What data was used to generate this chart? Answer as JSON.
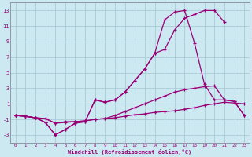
{
  "xlabel": "Windchill (Refroidissement éolien,°C)",
  "xlim": [
    -0.5,
    23.5
  ],
  "ylim": [
    -4,
    14
  ],
  "yticks": [
    -3,
    -1,
    1,
    3,
    5,
    7,
    9,
    11,
    13
  ],
  "xticks": [
    0,
    1,
    2,
    3,
    4,
    5,
    6,
    7,
    8,
    9,
    10,
    11,
    12,
    13,
    14,
    15,
    16,
    17,
    18,
    19,
    20,
    21,
    22,
    23
  ],
  "bg_color": "#cce8f0",
  "line_color": "#990077",
  "grid_color": "#aaccd8",
  "series1_x": [
    0,
    1,
    2,
    3,
    4,
    5,
    6,
    7,
    8,
    9,
    10,
    11,
    12,
    13,
    14,
    15,
    16,
    17,
    18,
    19,
    20,
    21,
    22,
    23
  ],
  "series1_y": [
    -0.5,
    -0.6,
    -0.8,
    -0.9,
    -1.5,
    -1.3,
    -1.3,
    -1.2,
    -1.0,
    -0.9,
    -0.8,
    -0.6,
    -0.4,
    -0.3,
    -0.1,
    0.0,
    0.1,
    0.3,
    0.5,
    0.8,
    1.0,
    1.2,
    1.1,
    1.0
  ],
  "series2_x": [
    0,
    1,
    2,
    3,
    4,
    5,
    6,
    7,
    8,
    9,
    10,
    11,
    12,
    13,
    14,
    15,
    16,
    17,
    18,
    19,
    20,
    21,
    22,
    23
  ],
  "series2_y": [
    -0.5,
    -0.6,
    -0.8,
    -0.9,
    -1.5,
    -1.4,
    -1.3,
    -1.2,
    -1.0,
    -0.9,
    -0.5,
    0.0,
    0.5,
    1.0,
    1.5,
    2.0,
    2.5,
    2.8,
    3.0,
    3.2,
    3.3,
    1.5,
    1.3,
    -0.5
  ],
  "series3_x": [
    0,
    1,
    2,
    3,
    4,
    5,
    6,
    7,
    8,
    9,
    10,
    11,
    12,
    13,
    14,
    15,
    16,
    17,
    18,
    19,
    20,
    21,
    22,
    23
  ],
  "series3_y": [
    -0.5,
    -0.6,
    -0.8,
    -1.4,
    -3.0,
    -2.3,
    -1.5,
    -1.3,
    1.5,
    1.2,
    1.5,
    2.5,
    4.0,
    5.5,
    7.5,
    11.8,
    12.8,
    13.0,
    8.8,
    3.5,
    1.5,
    1.5,
    1.3,
    -0.5
  ],
  "series4_x": [
    0,
    1,
    2,
    3,
    4,
    5,
    6,
    7,
    8,
    9,
    10,
    11,
    12,
    13,
    14,
    15,
    16,
    17,
    18,
    19,
    20,
    21
  ],
  "series4_y": [
    -0.5,
    -0.6,
    -0.8,
    -1.4,
    -3.0,
    -2.3,
    -1.5,
    -1.3,
    1.5,
    1.2,
    1.5,
    2.5,
    4.0,
    5.5,
    7.5,
    8.0,
    10.5,
    12.0,
    12.5,
    13.0,
    13.0,
    11.5
  ]
}
